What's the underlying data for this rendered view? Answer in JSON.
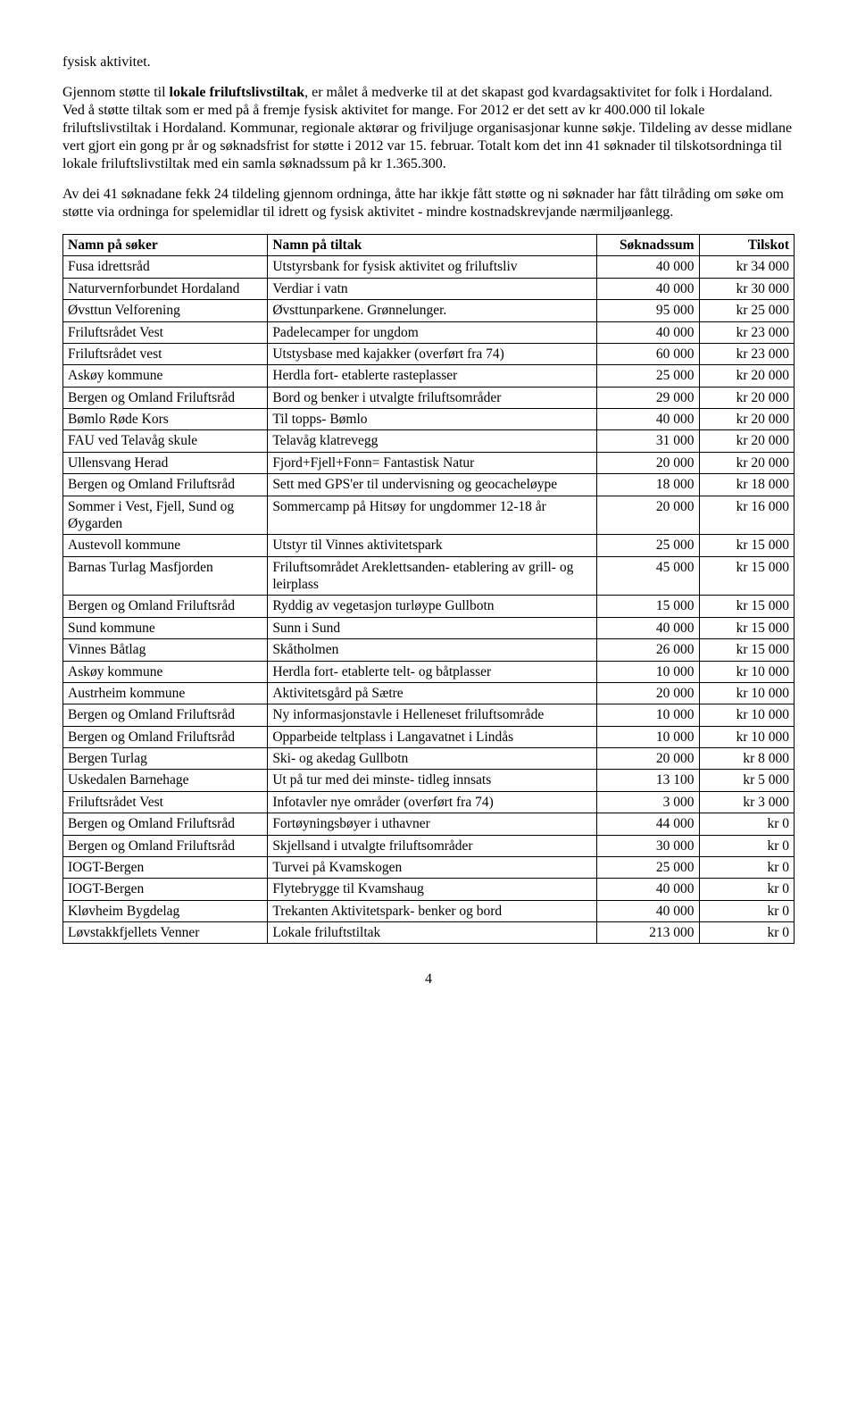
{
  "intro_lead": "fysisk aktivitet.",
  "para1_a": "Gjennom støtte til ",
  "para1_b_bold": "lokale friluftslivstiltak",
  "para1_c": ", er målet å medverke til at det skapast god kvardagsaktivitet for folk i Hordaland. Ved å støtte tiltak som er med på å fremje fysisk aktivitet for mange. For 2012 er det sett av kr 400.000 til lokale friluftslivstiltak i Hordaland. Kommunar, regionale aktørar og friviljuge organisasjonar kunne søkje. Tildeling av desse midlane vert gjort ein gong pr år og søknadsfrist for støtte i 2012 var 15. februar. Totalt kom det inn 41 søknader til tilskotsordninga til lokale friluftslivstiltak med ein samla søknadssum på kr 1.365.300.",
  "para2": "Av dei 41 søknadane fekk 24 tildeling gjennom ordninga, åtte har ikkje fått støtte og ni søknader har fått tilråding om søke om støtte via ordninga for spelemidlar til idrett og fysisk aktivitet - mindre kostnadskrevjande nærmiljøanlegg.",
  "headers": {
    "col1": "Namn på søker",
    "col2": "Namn på tiltak",
    "col3": "Søknadssum",
    "col4": "Tilskot"
  },
  "rows": [
    {
      "a": "Fusa idrettsråd",
      "b": "Utstyrsbank for fysisk aktivitet og friluftsliv",
      "c": "40 000",
      "d": "kr 34 000"
    },
    {
      "a": "Naturvernforbundet Hordaland",
      "b": "Verdiar i vatn",
      "c": "40 000",
      "d": "kr 30 000"
    },
    {
      "a": "Øvsttun Velforening",
      "b": "Øvsttunparkene. Grønnelunger.",
      "c": "95 000",
      "d": "kr 25 000"
    },
    {
      "a": "Friluftsrådet Vest",
      "b": "Padelecamper for ungdom",
      "c": "40 000",
      "d": "kr 23 000"
    },
    {
      "a": "Friluftsrådet vest",
      "b": "Utstysbase med kajakker (overført fra 74)",
      "c": "60 000",
      "d": "kr 23 000"
    },
    {
      "a": "Askøy kommune",
      "b": "Herdla fort- etablerte rasteplasser",
      "c": "25 000",
      "d": "kr 20 000"
    },
    {
      "a": "Bergen og Omland Friluftsråd",
      "b": "Bord og benker i utvalgte friluftsområder",
      "c": "29 000",
      "d": "kr 20 000"
    },
    {
      "a": "Bømlo Røde Kors",
      "b": "Til topps- Bømlo",
      "c": "40 000",
      "d": "kr 20 000"
    },
    {
      "a": "FAU ved Telavåg skule",
      "b": "Telavåg klatrevegg",
      "c": "31 000",
      "d": "kr 20 000"
    },
    {
      "a": "Ullensvang Herad",
      "b": "Fjord+Fjell+Fonn= Fantastisk Natur",
      "c": "20 000",
      "d": "kr 20 000"
    },
    {
      "a": "Bergen og Omland Friluftsråd",
      "b": "Sett med GPS'er til undervisning og geocacheløype",
      "c": "18 000",
      "d": "kr 18 000"
    },
    {
      "a": "Sommer i Vest, Fjell, Sund og Øygarden",
      "b": "Sommercamp på Hitsøy for ungdommer 12-18 år",
      "c": "20 000",
      "d": "kr 16 000"
    },
    {
      "a": "Austevoll kommune",
      "b": "Utstyr til Vinnes aktivitetspark",
      "c": "25 000",
      "d": "kr 15 000"
    },
    {
      "a": "Barnas Turlag Masfjorden",
      "b": "Friluftsområdet Areklettsanden- etablering av grill- og leirplass",
      "c": "45 000",
      "d": "kr 15 000"
    },
    {
      "a": "Bergen og Omland Friluftsråd",
      "b": "Ryddig av vegetasjon turløype Gullbotn",
      "c": "15 000",
      "d": "kr 15 000"
    },
    {
      "a": "Sund kommune",
      "b": "Sunn i Sund",
      "c": "40 000",
      "d": "kr 15 000"
    },
    {
      "a": "Vinnes Båtlag",
      "b": "Skåtholmen",
      "c": "26 000",
      "d": "kr 15 000"
    },
    {
      "a": "Askøy kommune",
      "b": "Herdla fort- etablerte telt- og båtplasser",
      "c": "10 000",
      "d": "kr 10 000"
    },
    {
      "a": "Austrheim kommune",
      "b": "Aktivitetsgård på Sætre",
      "c": "20 000",
      "d": "kr 10 000"
    },
    {
      "a": "Bergen og Omland Friluftsråd",
      "b": "Ny informasjonstavle i Helleneset friluftsområde",
      "c": "10 000",
      "d": "kr 10 000"
    },
    {
      "a": "Bergen og Omland Friluftsråd",
      "b": "Opparbeide teltplass i Langavatnet i Lindås",
      "c": "10 000",
      "d": "kr 10 000"
    },
    {
      "a": "Bergen Turlag",
      "b": "Ski- og akedag Gullbotn",
      "c": "20 000",
      "d": "kr 8 000"
    },
    {
      "a": "Uskedalen Barnehage",
      "b": "Ut på tur med dei minste- tidleg innsats",
      "c": "13 100",
      "d": "kr 5 000"
    },
    {
      "a": "Friluftsrådet Vest",
      "b": "Infotavler nye områder (overført fra 74)",
      "c": "3 000",
      "d": "kr 3 000"
    },
    {
      "a": "Bergen og Omland Friluftsråd",
      "b": "Fortøyningsbøyer i uthavner",
      "c": "44 000",
      "d": "kr 0"
    },
    {
      "a": "Bergen og Omland Friluftsråd",
      "b": "Skjellsand i utvalgte friluftsområder",
      "c": "30 000",
      "d": "kr 0"
    },
    {
      "a": "IOGT-Bergen",
      "b": "Turvei på Kvamskogen",
      "c": "25 000",
      "d": "kr 0"
    },
    {
      "a": "IOGT-Bergen",
      "b": "Flytebrygge til Kvamshaug",
      "c": "40 000",
      "d": "kr 0"
    },
    {
      "a": "Kløvheim Bygdelag",
      "b": "Trekanten Aktivitetspark- benker og bord",
      "c": "40 000",
      "d": "kr 0"
    },
    {
      "a": "Løvstakkfjellets Venner",
      "b": "Lokale friluftstiltak",
      "c": "213 000",
      "d": "kr 0"
    }
  ],
  "pagenum": "4"
}
